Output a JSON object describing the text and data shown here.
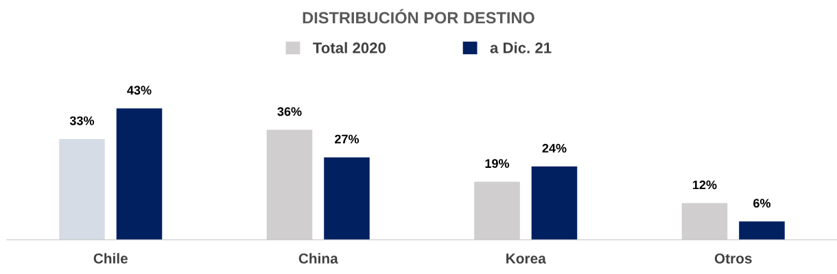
{
  "chart_data": {
    "type": "bar",
    "title": "DISTRIBUCIÓN POR DESTINO",
    "categories": [
      "Chile",
      "China",
      "Korea",
      "Otros"
    ],
    "series": [
      {
        "name": "Total 2020",
        "color": "#d0cece",
        "colors": [
          "#d6dce5",
          "#d0cece",
          "#d0cece",
          "#d0cece"
        ],
        "values": [
          33,
          36,
          19,
          12
        ],
        "value_labels": [
          "33%",
          "36%",
          "19%",
          "12%"
        ]
      },
      {
        "name": "a Dic. 21",
        "color": "#002060",
        "values": [
          43,
          27,
          24,
          6
        ],
        "value_labels": [
          "43%",
          "27%",
          "24%",
          "6%"
        ]
      }
    ],
    "legend": "top",
    "grid": false
  }
}
